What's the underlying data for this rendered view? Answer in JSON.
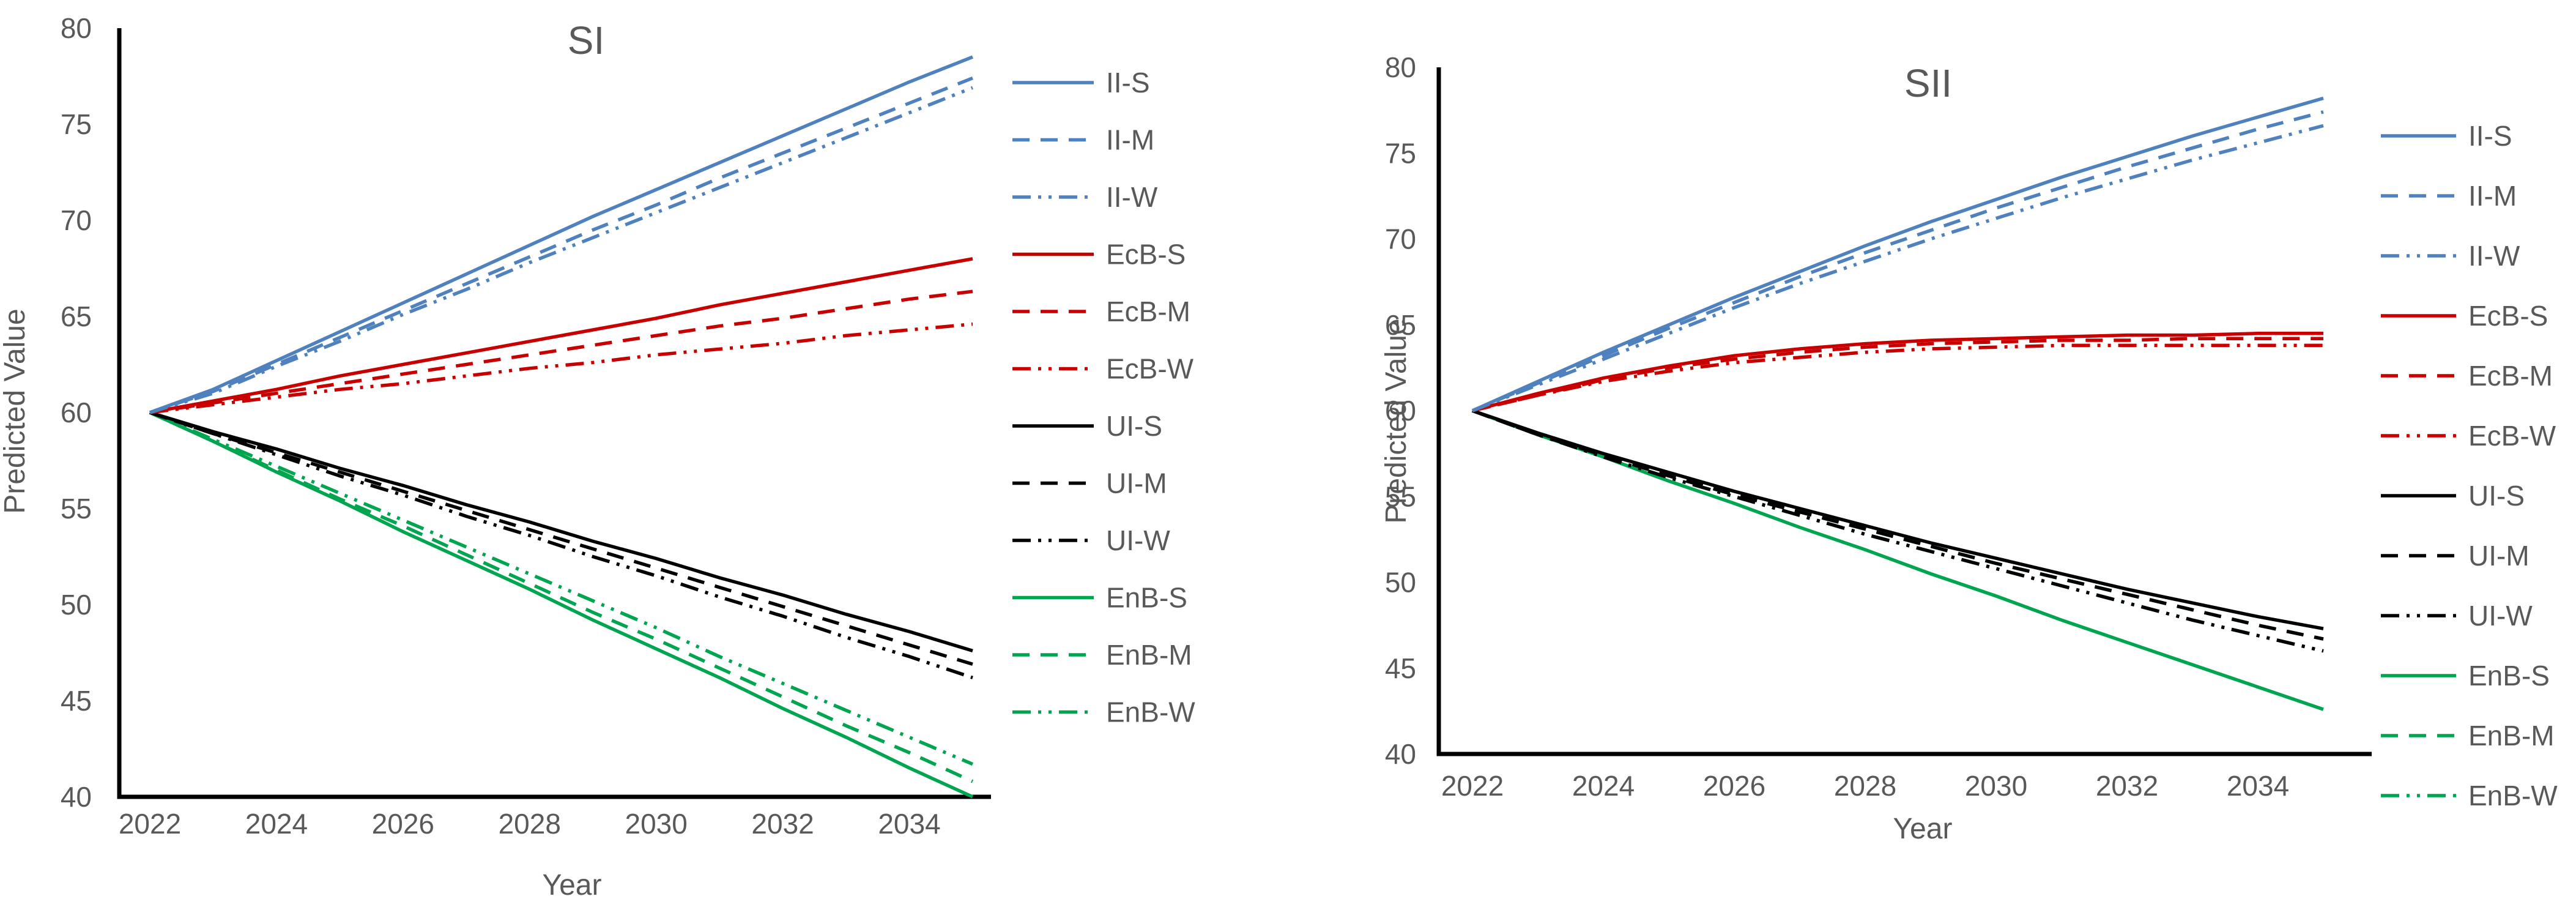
{
  "figure": {
    "background": "#ffffff",
    "text_color": "#595959",
    "axis_color": "#000000"
  },
  "chart_data": [
    {
      "type": "line",
      "title": "SI",
      "xlabel": "Year",
      "ylabel": "Predicted Value",
      "x": [
        2022,
        2023,
        2024,
        2025,
        2026,
        2027,
        2028,
        2029,
        2030,
        2031,
        2032,
        2033,
        2034,
        2035
      ],
      "xticks": [
        2022,
        2024,
        2026,
        2028,
        2030,
        2032,
        2034
      ],
      "yticks": [
        40,
        45,
        50,
        55,
        60,
        65,
        70,
        75,
        80
      ],
      "ylim": [
        40,
        80
      ],
      "grid": false,
      "legend_position": "right",
      "series": [
        {
          "name": "II-S",
          "color": "#4E81BD",
          "style": "solid",
          "values": [
            60,
            61.2,
            62.7,
            64.2,
            65.7,
            67.2,
            68.7,
            70.2,
            71.6,
            73.0,
            74.4,
            75.8,
            77.2,
            78.5
          ]
        },
        {
          "name": "II-M",
          "color": "#4E81BD",
          "style": "dash",
          "values": [
            60,
            61.1,
            62.5,
            63.9,
            65.3,
            66.7,
            68.1,
            69.5,
            70.8,
            72.2,
            73.5,
            74.8,
            76.1,
            77.4
          ]
        },
        {
          "name": "II-W",
          "color": "#4E81BD",
          "style": "dashdotdot",
          "values": [
            60,
            61.0,
            62.4,
            63.7,
            65.1,
            66.4,
            67.8,
            69.1,
            70.4,
            71.7,
            73.0,
            74.3,
            75.6,
            76.9
          ]
        },
        {
          "name": "EcB-S",
          "color": "#C80000",
          "style": "solid",
          "values": [
            60,
            60.6,
            61.2,
            61.9,
            62.5,
            63.1,
            63.7,
            64.3,
            64.9,
            65.6,
            66.2,
            66.8,
            67.4,
            68.0
          ]
        },
        {
          "name": "EcB-M",
          "color": "#C80000",
          "style": "dash",
          "values": [
            60,
            60.5,
            61.0,
            61.5,
            62.0,
            62.5,
            63.0,
            63.5,
            64.0,
            64.5,
            64.9,
            65.4,
            65.9,
            66.3
          ]
        },
        {
          "name": "EcB-W",
          "color": "#C80000",
          "style": "dashdotdot",
          "values": [
            60,
            60.4,
            60.8,
            61.2,
            61.5,
            61.9,
            62.3,
            62.6,
            63.0,
            63.3,
            63.6,
            64.0,
            64.3,
            64.6
          ]
        },
        {
          "name": "UI-S",
          "color": "#000000",
          "style": "solid",
          "values": [
            60,
            59.0,
            58.1,
            57.1,
            56.2,
            55.2,
            54.3,
            53.3,
            52.4,
            51.4,
            50.5,
            49.5,
            48.6,
            47.6
          ]
        },
        {
          "name": "UI-M",
          "color": "#000000",
          "style": "dash",
          "values": [
            60,
            58.9,
            57.9,
            56.9,
            55.9,
            54.9,
            53.9,
            52.9,
            51.9,
            50.9,
            49.9,
            48.9,
            47.9,
            46.9
          ]
        },
        {
          "name": "UI-W",
          "color": "#000000",
          "style": "dashdotdot",
          "values": [
            60,
            58.9,
            57.8,
            56.7,
            55.7,
            54.6,
            53.6,
            52.5,
            51.5,
            50.4,
            49.4,
            48.3,
            47.3,
            46.2
          ]
        },
        {
          "name": "EnB-S",
          "color": "#00A550",
          "style": "solid",
          "values": [
            60,
            58.5,
            56.9,
            55.4,
            53.8,
            52.3,
            50.8,
            49.2,
            47.7,
            46.2,
            44.6,
            43.1,
            41.5,
            40.0
          ]
        },
        {
          "name": "EnB-M",
          "color": "#00A550",
          "style": "dash",
          "values": [
            60,
            58.5,
            57.0,
            55.5,
            54.1,
            52.6,
            51.1,
            49.6,
            48.2,
            46.7,
            45.2,
            43.7,
            42.3,
            40.8
          ]
        },
        {
          "name": "EnB-W",
          "color": "#00A550",
          "style": "dashdotdot",
          "values": [
            60,
            58.6,
            57.2,
            55.8,
            54.4,
            53.0,
            51.6,
            50.2,
            48.8,
            47.3,
            45.9,
            44.5,
            43.1,
            41.7
          ]
        }
      ]
    },
    {
      "type": "line",
      "title": "SII",
      "xlabel": "Year",
      "ylabel": "Predicted Value",
      "x": [
        2022,
        2023,
        2024,
        2025,
        2026,
        2027,
        2028,
        2029,
        2030,
        2031,
        2032,
        2033,
        2034,
        2035
      ],
      "xticks": [
        2022,
        2024,
        2026,
        2028,
        2030,
        2032,
        2034
      ],
      "yticks": [
        40,
        45,
        50,
        55,
        60,
        65,
        70,
        75,
        80
      ],
      "ylim": [
        40,
        80
      ],
      "grid": false,
      "legend_position": "right",
      "series": [
        {
          "name": "II-S",
          "color": "#4E81BD",
          "style": "solid",
          "values": [
            60,
            61.7,
            63.4,
            65.0,
            66.6,
            68.1,
            69.6,
            71.0,
            72.3,
            73.6,
            74.8,
            76.0,
            77.1,
            78.2
          ]
        },
        {
          "name": "II-M",
          "color": "#4E81BD",
          "style": "dash",
          "values": [
            60,
            61.6,
            63.2,
            64.8,
            66.3,
            67.8,
            69.2,
            70.5,
            71.8,
            73.0,
            74.2,
            75.3,
            76.4,
            77.4
          ]
        },
        {
          "name": "II-W",
          "color": "#4E81BD",
          "style": "dashdotdot",
          "values": [
            60,
            61.5,
            63.0,
            64.5,
            66.0,
            67.4,
            68.7,
            70.0,
            71.2,
            72.4,
            73.5,
            74.6,
            75.6,
            76.6
          ]
        },
        {
          "name": "EcB-S",
          "color": "#C80000",
          "style": "solid",
          "values": [
            60,
            61.0,
            61.9,
            62.6,
            63.2,
            63.6,
            63.9,
            64.1,
            64.2,
            64.3,
            64.4,
            64.4,
            64.5,
            64.5
          ]
        },
        {
          "name": "EcB-M",
          "color": "#C80000",
          "style": "dash",
          "values": [
            60,
            60.9,
            61.8,
            62.5,
            63.0,
            63.4,
            63.7,
            63.9,
            64.0,
            64.1,
            64.1,
            64.2,
            64.2,
            64.2
          ]
        },
        {
          "name": "EcB-W",
          "color": "#C80000",
          "style": "dashdotdot",
          "values": [
            60,
            60.9,
            61.7,
            62.3,
            62.8,
            63.1,
            63.4,
            63.6,
            63.7,
            63.8,
            63.8,
            63.8,
            63.8,
            63.8
          ]
        },
        {
          "name": "UI-S",
          "color": "#000000",
          "style": "solid",
          "values": [
            60,
            58.7,
            57.5,
            56.4,
            55.3,
            54.3,
            53.3,
            52.3,
            51.4,
            50.5,
            49.6,
            48.8,
            48.0,
            47.3
          ]
        },
        {
          "name": "UI-M",
          "color": "#000000",
          "style": "dash",
          "values": [
            60,
            58.6,
            57.4,
            56.2,
            55.1,
            54.1,
            53.1,
            52.1,
            51.1,
            50.2,
            49.3,
            48.4,
            47.5,
            46.7
          ]
        },
        {
          "name": "UI-W",
          "color": "#000000",
          "style": "dashdotdot",
          "values": [
            60,
            58.6,
            57.3,
            56.1,
            55.0,
            53.9,
            52.8,
            51.8,
            50.8,
            49.8,
            48.8,
            47.8,
            46.9,
            46.0
          ]
        },
        {
          "name": "EnB-S",
          "color": "#00A550",
          "style": "solid",
          "values": [
            60,
            58.6,
            57.3,
            55.9,
            54.6,
            53.2,
            51.9,
            50.5,
            49.2,
            47.8,
            46.5,
            45.2,
            43.9,
            42.6
          ]
        },
        {
          "name": "EnB-M",
          "color": "#00A550",
          "style": "dash",
          "values": [
            60,
            58.6,
            57.4,
            56.2,
            55.1,
            54.1,
            53.1,
            52.1,
            51.1,
            50.2,
            49.3,
            48.4,
            47.5,
            46.7
          ]
        },
        {
          "name": "EnB-W",
          "color": "#00A550",
          "style": "dashdotdot",
          "values": [
            60,
            58.6,
            57.3,
            56.1,
            55.0,
            53.9,
            52.8,
            51.8,
            50.8,
            49.8,
            48.8,
            47.8,
            46.9,
            46.0
          ]
        }
      ]
    }
  ]
}
